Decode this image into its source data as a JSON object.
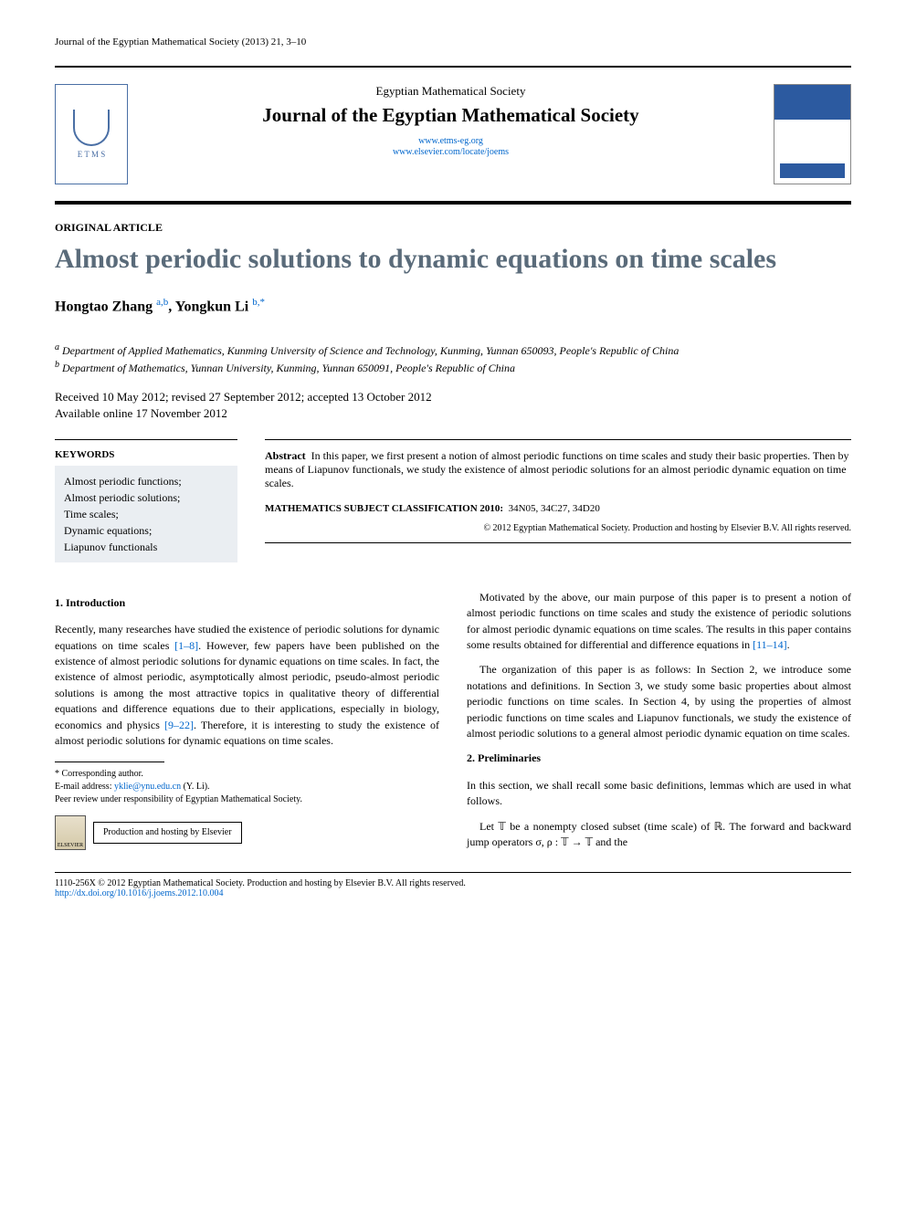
{
  "header": {
    "citation": "Journal of the Egyptian Mathematical Society (2013) 21, 3–10"
  },
  "masthead": {
    "society": "Egyptian Mathematical Society",
    "journal": "Journal of the Egyptian Mathematical Society",
    "link1": "www.etms-eg.org",
    "link2": "www.elsevier.com/locate/joems",
    "logo_letters": "E T M S"
  },
  "article": {
    "type": "ORIGINAL ARTICLE",
    "title": "Almost periodic solutions to dynamic equations on time scales",
    "authors_html": "Hongtao Zhang",
    "author1": "Hongtao Zhang",
    "author1_aff": "a,b",
    "author2": "Yongkun Li",
    "author2_aff": "b,*",
    "aff_a": "Department of Applied Mathematics, Kunming University of Science and Technology, Kunming, Yunnan 650093, People's Republic of China",
    "aff_b": "Department of Mathematics, Yunnan University, Kunming, Yunnan 650091, People's Republic of China",
    "received": "Received 10 May 2012; revised 27 September 2012; accepted 13 October 2012",
    "online": "Available online 17 November 2012"
  },
  "keywords": {
    "heading": "KEYWORDS",
    "items": "Almost periodic functions;\nAlmost periodic solutions;\nTime scales;\nDynamic equations;\nLiapunov functionals"
  },
  "abstract": {
    "label": "Abstract",
    "text": "In this paper, we first present a notion of almost periodic functions on time scales and study their basic properties. Then by means of Liapunov functionals, we study the existence of almost periodic solutions for an almost periodic dynamic equation on time scales.",
    "msc_label": "MATHEMATICS SUBJECT CLASSIFICATION 2010:",
    "msc_codes": "34N05, 34C27, 34D20",
    "copyright": "© 2012 Egyptian Mathematical Society. Production and hosting by Elsevier B.V. All rights reserved."
  },
  "body": {
    "s1_head": "1. Introduction",
    "s1_p1a": "Recently, many researches have studied the existence of periodic solutions for dynamic equations on time scales ",
    "s1_p1_ref1": "[1–8]",
    "s1_p1b": ". However, few papers have been published on the existence of almost periodic solutions for dynamic equations on time scales. In fact, the existence of almost periodic, asymptotically almost periodic, pseudo-almost periodic solutions is among the most attractive topics in qualitative theory of differential equations and difference equations due to their applications, especially in biology, economics and physics ",
    "s1_p1_ref2": "[9–22]",
    "s1_p1c": ". Therefore, it is interesting to study the existence of almost periodic solutions for dynamic equations on time scales.",
    "s1_p2a": "Motivated by the above, our main purpose of this paper is to present a notion of almost periodic functions on time scales and study the existence of periodic solutions for almost periodic dynamic equations on time scales. The results in this paper contains some results obtained for differential and difference equations in ",
    "s1_p2_ref": "[11–14]",
    "s1_p2b": ".",
    "s1_p3": "The organization of this paper is as follows: In Section 2, we introduce some notations and definitions. In Section 3, we study some basic properties about almost periodic functions on time scales. In Section 4, by using the properties of almost periodic functions on time scales and Liapunov functionals, we study the existence of almost periodic solutions to a general almost periodic dynamic equation on time scales.",
    "s2_head": "2. Preliminaries",
    "s2_p1": "In this section, we shall recall some basic definitions, lemmas which are used in what follows.",
    "s2_p2": "Let 𝕋 be a nonempty closed subset (time scale) of ℝ. The forward and backward jump operators σ, ρ : 𝕋 → 𝕋 and the"
  },
  "footnotes": {
    "corr": "* Corresponding author.",
    "email_label": "E-mail address:",
    "email": "yklie@ynu.edu.cn",
    "email_who": "(Y. Li).",
    "peer": "Peer review under responsibility of Egyptian Mathematical Society.",
    "hosting": "Production and hosting by Elsevier",
    "elsevier": "ELSEVIER"
  },
  "footer": {
    "line1": "1110-256X © 2012 Egyptian Mathematical Society. Production and hosting by Elsevier B.V. All rights reserved.",
    "doi": "http://dx.doi.org/10.1016/j.joems.2012.10.004"
  },
  "colors": {
    "title_color": "#5a6b7a",
    "link_color": "#0066cc",
    "kw_bg": "#eaeef2",
    "logo_color": "#4a6fa5"
  }
}
